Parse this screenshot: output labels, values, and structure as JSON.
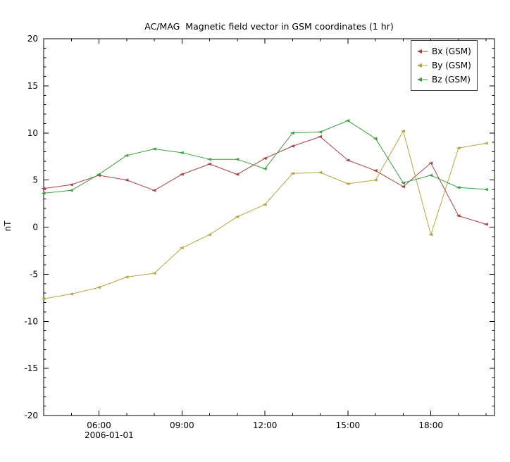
{
  "chart_data": {
    "type": "line",
    "title": "AC/MAG  Magnetic field vector in GSM coordinates (1 hr)",
    "xlabel": "2006-01-01",
    "ylabel": "nT",
    "xlim": [
      4,
      20.3
    ],
    "ylim": [
      -20,
      20
    ],
    "grid": false,
    "legend_position": "top-right",
    "x_unit": "hour-of-day",
    "x": [
      4,
      5,
      6,
      7,
      8,
      9,
      10,
      11,
      12,
      13,
      14,
      15,
      16,
      17,
      18,
      19,
      20
    ],
    "x_major_ticks": [
      {
        "value": 6,
        "label": "06:00"
      },
      {
        "value": 9,
        "label": "09:00"
      },
      {
        "value": 12,
        "label": "12:00"
      },
      {
        "value": 15,
        "label": "15:00"
      },
      {
        "value": 18,
        "label": "18:00"
      }
    ],
    "x_minor_step": 1,
    "y_major_ticks": [
      {
        "value": 20,
        "label": "20"
      },
      {
        "value": 15,
        "label": "15"
      },
      {
        "value": 10,
        "label": "10"
      },
      {
        "value": 5,
        "label": "5"
      },
      {
        "value": 0,
        "label": "0"
      },
      {
        "value": -5,
        "label": "-5"
      },
      {
        "value": -10,
        "label": "-10"
      },
      {
        "value": -15,
        "label": "-15"
      },
      {
        "value": -20,
        "label": "-20"
      }
    ],
    "y_minor_step": 1,
    "series": [
      {
        "name": "Bx (GSM)",
        "color": "#aa4343",
        "values": [
          4.1,
          4.5,
          5.5,
          5.0,
          3.9,
          5.6,
          6.7,
          5.6,
          7.3,
          8.6,
          9.6,
          7.1,
          6.0,
          4.3,
          6.8,
          1.2,
          0.3
        ]
      },
      {
        "name": "By (GSM)",
        "color": "#b5a642",
        "values": [
          -7.6,
          -7.1,
          -6.4,
          -5.3,
          -4.9,
          -2.2,
          -0.8,
          1.1,
          2.4,
          5.7,
          5.8,
          4.6,
          5.0,
          10.2,
          -0.8,
          8.4,
          8.9
        ]
      },
      {
        "name": "Bz (GSM)",
        "color": "#3ca03c",
        "values": [
          3.6,
          3.9,
          5.6,
          7.6,
          8.3,
          7.9,
          7.2,
          7.2,
          6.2,
          10.0,
          10.1,
          11.3,
          9.4,
          4.7,
          5.5,
          4.2,
          4.0
        ]
      }
    ]
  }
}
